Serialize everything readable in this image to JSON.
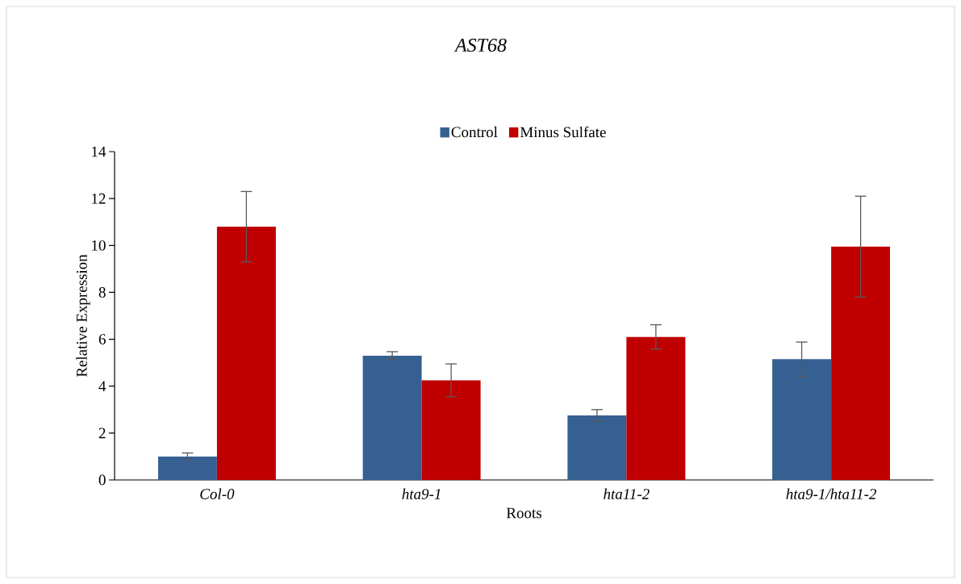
{
  "chart_data": {
    "type": "bar",
    "title": "AST68",
    "xlabel": "Roots",
    "ylabel": "Relative Expression",
    "categories": [
      "Col-0",
      "hta9-1",
      "hta11-2",
      "hta9-1/hta11-2"
    ],
    "series": [
      {
        "name": "Control",
        "color": "#366092",
        "values": [
          1.0,
          5.3,
          2.75,
          5.15
        ],
        "errors": [
          0.15,
          0.17,
          0.25,
          0.73
        ]
      },
      {
        "name": "Minus Sulfate",
        "color": "#c00000",
        "values": [
          10.8,
          4.25,
          6.1,
          9.95
        ],
        "errors": [
          1.5,
          0.7,
          0.52,
          2.15
        ]
      }
    ],
    "ylim": [
      0,
      14
    ],
    "yticks": [
      0,
      2,
      4,
      6,
      8,
      10,
      12,
      14
    ],
    "legend": "top",
    "grid": false
  }
}
